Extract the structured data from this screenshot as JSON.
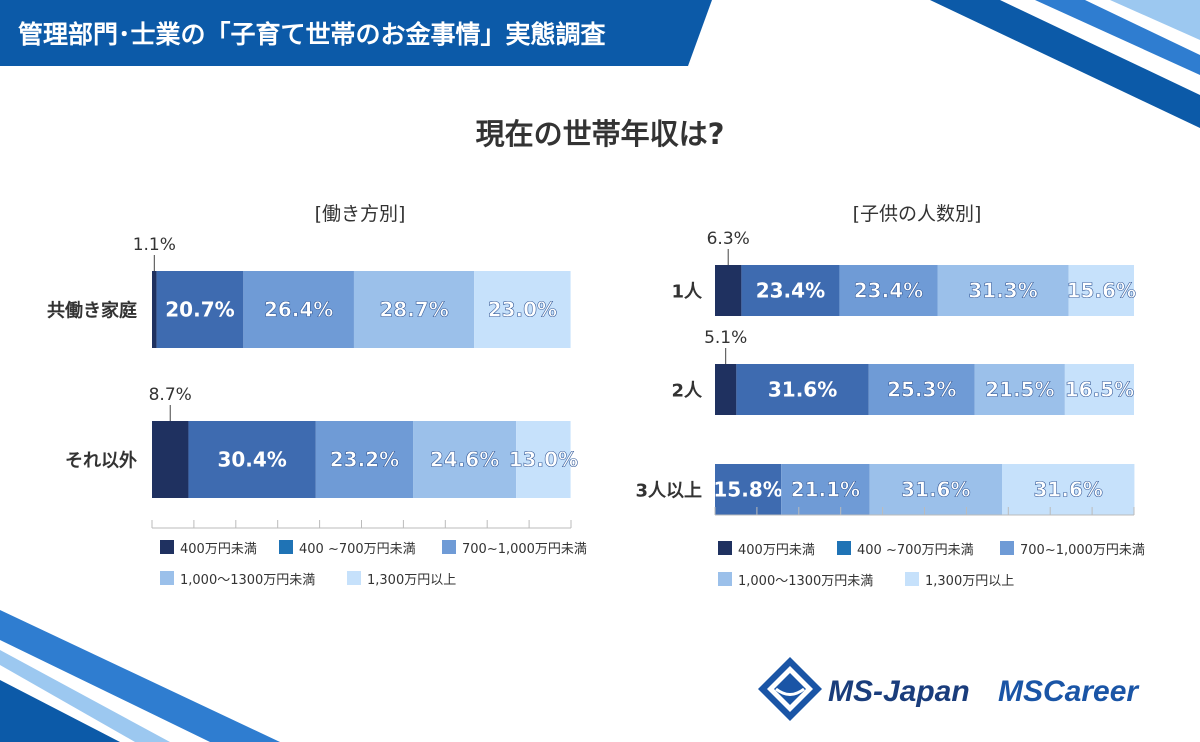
{
  "header": {
    "title": "管理部門･士業の「子育て世帯のお金事情」実態調査"
  },
  "main": {
    "title": "現在の世帯年収は?"
  },
  "colors": {
    "header_bg": "#0c5aa8",
    "header_text": "#ffffff",
    "series": [
      "#1f3160",
      "#3e6bb0",
      "#6f9bd6",
      "#9bc0ea",
      "#c6e1fb"
    ],
    "legend_swatch_2": "#1f73b5",
    "label_light": "#ffffff"
  },
  "legend": {
    "items": [
      "400万円未満",
      "400 ~700万円未満",
      "700~1,000万円未満",
      "1,000～1300万円未満",
      "1,300万円以上"
    ]
  },
  "logos": {
    "ms_japan": "MS-Japan",
    "ms_career": "MSCareer"
  },
  "chart_data": [
    {
      "type": "bar",
      "orientation": "horizontal",
      "stacked": true,
      "title": "[働き方別]",
      "categories": [
        "共働き家庭",
        "それ以外"
      ],
      "series": [
        {
          "name": "400万円未満",
          "values": [
            1.1,
            8.7
          ]
        },
        {
          "name": "400 ~700万円未満",
          "values": [
            20.7,
            30.4
          ]
        },
        {
          "name": "700~1,000万円未満",
          "values": [
            26.4,
            23.2
          ]
        },
        {
          "name": "1,000～1300万円未満",
          "values": [
            28.7,
            24.6
          ]
        },
        {
          "name": "1,300万円以上",
          "values": [
            23.0,
            13.0
          ]
        }
      ],
      "labels": [
        [
          "1.1%",
          "20.7%",
          "26.4%",
          "28.7%",
          "23.0%"
        ],
        [
          "8.7%",
          "30.4%",
          "23.2%",
          "24.6%",
          "13.0%"
        ]
      ],
      "xlim": [
        0,
        100
      ],
      "legend_position": "bottom"
    },
    {
      "type": "bar",
      "orientation": "horizontal",
      "stacked": true,
      "title": "[子供の人数別]",
      "categories": [
        "1人",
        "2人",
        "3人以上"
      ],
      "series": [
        {
          "name": "400万円未満",
          "values": [
            6.3,
            5.1,
            0
          ]
        },
        {
          "name": "400 ~700万円未満",
          "values": [
            23.4,
            31.6,
            15.8
          ]
        },
        {
          "name": "700~1,000万円未満",
          "values": [
            23.4,
            25.3,
            21.1
          ]
        },
        {
          "name": "1,000～1300万円未満",
          "values": [
            31.3,
            21.5,
            31.6
          ]
        },
        {
          "name": "1,300万円以上",
          "values": [
            15.6,
            16.5,
            31.6
          ]
        }
      ],
      "labels": [
        [
          "6.3%",
          "23.4%",
          "23.4%",
          "31.3%",
          "15.6%"
        ],
        [
          "5.1%",
          "31.6%",
          "25.3%",
          "21.5%",
          "16.5%"
        ],
        [
          "",
          "15.8%",
          "21.1%",
          "31.6%",
          "31.6%"
        ]
      ],
      "xlim": [
        0,
        100
      ],
      "legend_position": "bottom"
    }
  ]
}
